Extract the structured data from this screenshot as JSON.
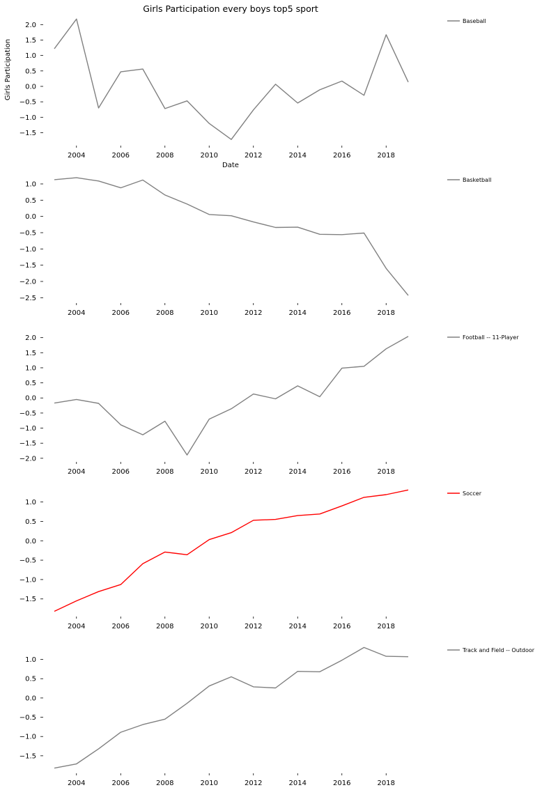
{
  "chart_data": [
    {
      "type": "line",
      "title": "Girls Participation every boys top5 sport",
      "xlabel": "Date",
      "ylabel": "Girls Participation",
      "x": [
        2003,
        2004,
        2005,
        2006,
        2007,
        2008,
        2009,
        2010,
        2011,
        2012,
        2013,
        2014,
        2015,
        2016,
        2017,
        2018,
        2019
      ],
      "xticks": [
        2004,
        2006,
        2008,
        2010,
        2012,
        2014,
        2016,
        2018
      ],
      "yticks": [
        -1.5,
        -1.0,
        -0.5,
        0.0,
        0.5,
        1.0,
        1.5,
        2.0
      ],
      "ylim": [
        -1.85,
        2.3
      ],
      "xlim": [
        2002.8,
        2019.2
      ],
      "grid": false,
      "legend_position": "outside-right",
      "series": [
        {
          "name": "Baseball",
          "color": "#808080",
          "values": [
            1.22,
            2.18,
            -0.7,
            0.47,
            0.56,
            -0.72,
            -0.47,
            -1.2,
            -1.72,
            -0.76,
            0.07,
            -0.54,
            -0.11,
            0.17,
            -0.29,
            1.67,
            0.14
          ]
        }
      ]
    },
    {
      "type": "line",
      "title": "",
      "xlabel": "",
      "ylabel": "",
      "x": [
        2003,
        2004,
        2005,
        2006,
        2007,
        2008,
        2009,
        2010,
        2011,
        2012,
        2013,
        2014,
        2015,
        2016,
        2017,
        2018,
        2019
      ],
      "xticks": [
        2004,
        2006,
        2008,
        2010,
        2012,
        2014,
        2016,
        2018
      ],
      "yticks": [
        -2.5,
        -2.0,
        -1.5,
        -1.0,
        -0.5,
        0.0,
        0.5,
        1.0
      ],
      "ylim": [
        -2.6,
        1.3
      ],
      "xlim": [
        2002.8,
        2019.2
      ],
      "grid": false,
      "legend_position": "outside-right",
      "series": [
        {
          "name": "Basketball",
          "color": "#808080",
          "values": [
            1.13,
            1.19,
            1.09,
            0.88,
            1.12,
            0.66,
            0.38,
            0.06,
            0.02,
            -0.17,
            -0.34,
            -0.33,
            -0.55,
            -0.56,
            -0.51,
            -1.6,
            -2.43
          ]
        }
      ]
    },
    {
      "type": "line",
      "title": "",
      "xlabel": "",
      "ylabel": "",
      "x": [
        2003,
        2004,
        2005,
        2006,
        2007,
        2008,
        2009,
        2010,
        2011,
        2012,
        2013,
        2014,
        2015,
        2016,
        2017,
        2018,
        2019
      ],
      "xticks": [
        2004,
        2006,
        2008,
        2010,
        2012,
        2014,
        2016,
        2018
      ],
      "yticks": [
        -2.0,
        -1.5,
        -1.0,
        -0.5,
        0.0,
        0.5,
        1.0,
        1.5,
        2.0
      ],
      "ylim": [
        -2.05,
        2.2
      ],
      "xlim": [
        2002.8,
        2019.2
      ],
      "grid": false,
      "legend_position": "outside-right",
      "series": [
        {
          "name": "Football -- 11-Player",
          "color": "#808080",
          "values": [
            -0.17,
            -0.05,
            -0.18,
            -0.89,
            -1.22,
            -0.77,
            -1.89,
            -0.7,
            -0.36,
            0.13,
            -0.03,
            0.4,
            0.04,
            0.99,
            1.05,
            1.63,
            2.04
          ]
        }
      ]
    },
    {
      "type": "line",
      "title": "",
      "xlabel": "",
      "ylabel": "",
      "x": [
        2003,
        2004,
        2005,
        2006,
        2007,
        2008,
        2009,
        2010,
        2011,
        2012,
        2013,
        2014,
        2015,
        2016,
        2017,
        2018,
        2019
      ],
      "xticks": [
        2004,
        2006,
        2008,
        2010,
        2012,
        2014,
        2016,
        2018
      ],
      "yticks": [
        -1.5,
        -1.0,
        -0.5,
        0.0,
        0.5,
        1.0
      ],
      "ylim": [
        -1.9,
        1.37
      ],
      "xlim": [
        2002.8,
        2019.2
      ],
      "grid": false,
      "legend_position": "outside-right",
      "series": [
        {
          "name": "Soccer",
          "color": "#ff0000",
          "values": [
            -1.82,
            -1.55,
            -1.31,
            -1.13,
            -0.59,
            -0.29,
            -0.36,
            0.03,
            0.21,
            0.53,
            0.55,
            0.65,
            0.69,
            0.9,
            1.12,
            1.19,
            1.31
          ]
        }
      ]
    },
    {
      "type": "line",
      "title": "",
      "xlabel": "",
      "ylabel": "",
      "x": [
        2003,
        2004,
        2005,
        2006,
        2007,
        2008,
        2009,
        2010,
        2011,
        2012,
        2013,
        2014,
        2015,
        2016,
        2017,
        2018,
        2019
      ],
      "xticks": [
        2004,
        2006,
        2008,
        2010,
        2012,
        2014,
        2016,
        2018
      ],
      "yticks": [
        -1.5,
        -1.0,
        -0.5,
        0.0,
        0.5,
        1.0
      ],
      "ylim": [
        -1.9,
        1.39
      ],
      "xlim": [
        2002.8,
        2019.2
      ],
      "grid": false,
      "legend_position": "outside-right",
      "series": [
        {
          "name": "Track and Field -- Outdoor",
          "color": "#808080",
          "values": [
            -1.82,
            -1.71,
            -1.32,
            -0.89,
            -0.69,
            -0.55,
            -0.14,
            0.31,
            0.55,
            0.29,
            0.26,
            0.69,
            0.68,
            0.98,
            1.31,
            1.08,
            1.07
          ]
        }
      ]
    }
  ]
}
